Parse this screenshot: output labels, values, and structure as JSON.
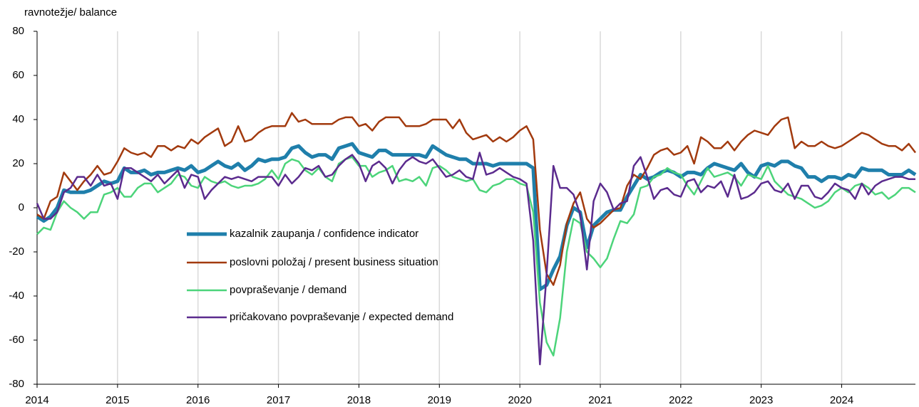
{
  "chart_data": {
    "type": "line",
    "y_axis_label": "ravnotežje/ balance",
    "categories": [
      "2014",
      null,
      null,
      null,
      null,
      null,
      null,
      null,
      null,
      null,
      null,
      null,
      "2015",
      null,
      null,
      null,
      null,
      null,
      null,
      null,
      null,
      null,
      null,
      null,
      "2016",
      null,
      null,
      null,
      null,
      null,
      null,
      null,
      null,
      null,
      null,
      null,
      "2017",
      null,
      null,
      null,
      null,
      null,
      null,
      null,
      null,
      null,
      null,
      null,
      "2018",
      null,
      null,
      null,
      null,
      null,
      null,
      null,
      null,
      null,
      null,
      null,
      "2019",
      null,
      null,
      null,
      null,
      null,
      null,
      null,
      null,
      null,
      null,
      null,
      "2020",
      null,
      null,
      null,
      null,
      null,
      null,
      null,
      null,
      null,
      null,
      null,
      "2021",
      null,
      null,
      null,
      null,
      null,
      null,
      null,
      null,
      null,
      null,
      null,
      "2022",
      null,
      null,
      null,
      null,
      null,
      null,
      null,
      null,
      null,
      null,
      null,
      "2023",
      null,
      null,
      null,
      null,
      null,
      null,
      null,
      null,
      null,
      null,
      null,
      "2024",
      null,
      null,
      null,
      null,
      null,
      null,
      null,
      null,
      null,
      null,
      null
    ],
    "series": [
      {
        "name": "kazalnik zaupanja / confidence indicator",
        "color": "#1f7fab",
        "width": 5,
        "values": [
          -4,
          -6,
          -4,
          0,
          8,
          7,
          7,
          7,
          8,
          10,
          12,
          11,
          12,
          18,
          16,
          16,
          17,
          15,
          16,
          16,
          17,
          18,
          17,
          19,
          16,
          17,
          19,
          21,
          19,
          18,
          20,
          17,
          19,
          22,
          21,
          22,
          22,
          23,
          27,
          28,
          25,
          23,
          24,
          24,
          22,
          27,
          28,
          29,
          25,
          24,
          23,
          26,
          26,
          24,
          24,
          24,
          24,
          24,
          23,
          28,
          26,
          24,
          23,
          22,
          22,
          20,
          20,
          20,
          19,
          20,
          20,
          20,
          20,
          20,
          18,
          -37,
          -35,
          -28,
          -22,
          -8,
          0,
          -2,
          -18,
          -8,
          -5,
          -2,
          -1,
          -1,
          5,
          10,
          15,
          13,
          14,
          16,
          17,
          16,
          14,
          16,
          16,
          15,
          18,
          20,
          19,
          18,
          17,
          20,
          16,
          14,
          19,
          20,
          19,
          21,
          21,
          19,
          18,
          14,
          14,
          12,
          14,
          14,
          13,
          15,
          14,
          18,
          17,
          17,
          17,
          15,
          15,
          15,
          17,
          15
        ]
      },
      {
        "name": "poslovni položaj / present business situation",
        "color": "#a23a0e",
        "width": 2.5,
        "values": [
          -3,
          -5,
          3,
          5,
          16,
          12,
          8,
          12,
          15,
          19,
          15,
          16,
          21,
          27,
          25,
          24,
          25,
          23,
          28,
          28,
          26,
          28,
          27,
          31,
          29,
          32,
          34,
          36,
          28,
          30,
          37,
          30,
          31,
          34,
          36,
          37,
          37,
          37,
          43,
          39,
          40,
          38,
          38,
          38,
          38,
          40,
          41,
          41,
          37,
          38,
          35,
          39,
          41,
          41,
          41,
          37,
          37,
          37,
          38,
          40,
          40,
          40,
          36,
          40,
          34,
          31,
          32,
          33,
          30,
          32,
          30,
          32,
          35,
          37,
          31,
          -10,
          -30,
          -35,
          -26,
          -7,
          2,
          7,
          -5,
          -9,
          -7,
          -4,
          -1,
          0,
          10,
          15,
          13,
          18,
          24,
          26,
          27,
          24,
          25,
          28,
          20,
          32,
          30,
          27,
          27,
          30,
          26,
          30,
          33,
          35,
          34,
          33,
          37,
          40,
          41,
          27,
          30,
          28,
          28,
          30,
          28,
          27,
          28,
          30,
          32,
          34,
          33,
          31,
          29,
          28,
          28,
          26,
          29,
          25
        ]
      },
      {
        "name": "povpraševanje / demand",
        "color": "#4cd47a",
        "width": 2.5,
        "values": [
          -12,
          -9,
          -10,
          -2,
          3,
          0,
          -2,
          -5,
          -2,
          -2,
          6,
          7,
          9,
          5,
          5,
          9,
          11,
          11,
          7,
          9,
          11,
          15,
          14,
          10,
          9,
          14,
          12,
          11,
          12,
          10,
          9,
          10,
          10,
          11,
          13,
          17,
          13,
          20,
          22,
          21,
          17,
          15,
          18,
          14,
          12,
          20,
          22,
          23,
          19,
          19,
          14,
          16,
          17,
          19,
          12,
          13,
          12,
          14,
          10,
          18,
          19,
          17,
          14,
          13,
          12,
          13,
          8,
          7,
          10,
          11,
          13,
          13,
          11,
          10,
          -2,
          -43,
          -61,
          -67,
          -50,
          -20,
          -5,
          -7,
          -20,
          -23,
          -27,
          -23,
          -14,
          -6,
          -7,
          -3,
          9,
          10,
          14,
          15,
          18,
          16,
          15,
          10,
          6,
          12,
          18,
          14,
          15,
          16,
          14,
          10,
          15,
          14,
          13,
          19,
          12,
          9,
          6,
          5,
          4,
          2,
          0,
          1,
          3,
          7,
          9,
          7,
          10,
          11,
          9,
          6,
          7,
          4,
          6,
          9,
          9,
          7
        ]
      },
      {
        "name": "pričakovano povpraševanje / expected demand",
        "color": "#5b2b8e",
        "width": 2.5,
        "values": [
          2,
          -5,
          -5,
          -2,
          7,
          9,
          14,
          14,
          10,
          15,
          10,
          11,
          4,
          18,
          18,
          16,
          14,
          12,
          15,
          11,
          14,
          17,
          9,
          15,
          14,
          4,
          8,
          11,
          14,
          13,
          14,
          13,
          12,
          14,
          14,
          14,
          10,
          15,
          11,
          14,
          18,
          17,
          19,
          14,
          15,
          19,
          22,
          24,
          20,
          12,
          19,
          21,
          18,
          11,
          17,
          21,
          23,
          21,
          20,
          22,
          18,
          14,
          15,
          17,
          14,
          13,
          25,
          15,
          16,
          18,
          16,
          14,
          13,
          11,
          -15,
          -71,
          -30,
          19,
          9,
          9,
          6,
          -3,
          -28,
          3,
          11,
          7,
          -1,
          2,
          3,
          19,
          23,
          14,
          4,
          8,
          9,
          6,
          5,
          12,
          13,
          7,
          10,
          9,
          12,
          5,
          15,
          4,
          5,
          7,
          11,
          12,
          8,
          7,
          11,
          4,
          10,
          10,
          5,
          4,
          7,
          11,
          9,
          8,
          4,
          11,
          6,
          10,
          12,
          13,
          14,
          14,
          13,
          13
        ]
      }
    ],
    "ylim": [
      -80,
      80
    ],
    "yticks": [
      -80,
      -60,
      -40,
      -20,
      0,
      20,
      40,
      60,
      80
    ],
    "xgrid": true
  }
}
